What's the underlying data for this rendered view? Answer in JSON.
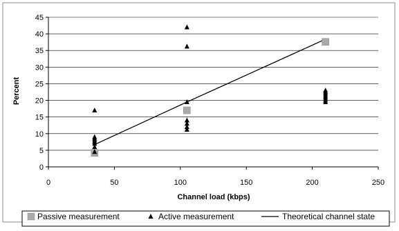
{
  "chart_data": {
    "type": "scatter",
    "title": "",
    "xlabel": "Channel load (kbps)",
    "ylabel": "Percent",
    "xlim": [
      0,
      250
    ],
    "ylim": [
      0,
      45
    ],
    "x_ticks": [
      0,
      50,
      100,
      150,
      200,
      250
    ],
    "y_ticks": [
      0,
      5,
      10,
      15,
      20,
      25,
      30,
      35,
      40,
      45
    ],
    "grid": "horizontal",
    "legend_position": "bottom",
    "series": [
      {
        "name": "Passive measurement",
        "marker": "square",
        "color": "#aaaaaa",
        "points": [
          [
            35,
            4.2
          ],
          [
            105,
            17
          ],
          [
            210,
            37.6
          ]
        ]
      },
      {
        "name": "Active measurement",
        "marker": "triangle",
        "color": "#000000",
        "points": [
          [
            35,
            17
          ],
          [
            35,
            9
          ],
          [
            35,
            8.5
          ],
          [
            35,
            8
          ],
          [
            35,
            7.5
          ],
          [
            35,
            7
          ],
          [
            35,
            6
          ],
          [
            35,
            4.5
          ],
          [
            105,
            42
          ],
          [
            105,
            36.2
          ],
          [
            105,
            19.5
          ],
          [
            105,
            14
          ],
          [
            105,
            13
          ],
          [
            105,
            12
          ],
          [
            105,
            11.2
          ],
          [
            210,
            23
          ],
          [
            210,
            22.5
          ],
          [
            210,
            22
          ],
          [
            210,
            21.5
          ],
          [
            210,
            21
          ],
          [
            210,
            20.5
          ],
          [
            210,
            20
          ],
          [
            210,
            19.5
          ]
        ]
      },
      {
        "name": "Theoretical channel state",
        "marker": "line",
        "color": "#000000",
        "points": [
          [
            35,
            6.7
          ],
          [
            105,
            19.5
          ],
          [
            210,
            38.4
          ]
        ]
      }
    ]
  }
}
